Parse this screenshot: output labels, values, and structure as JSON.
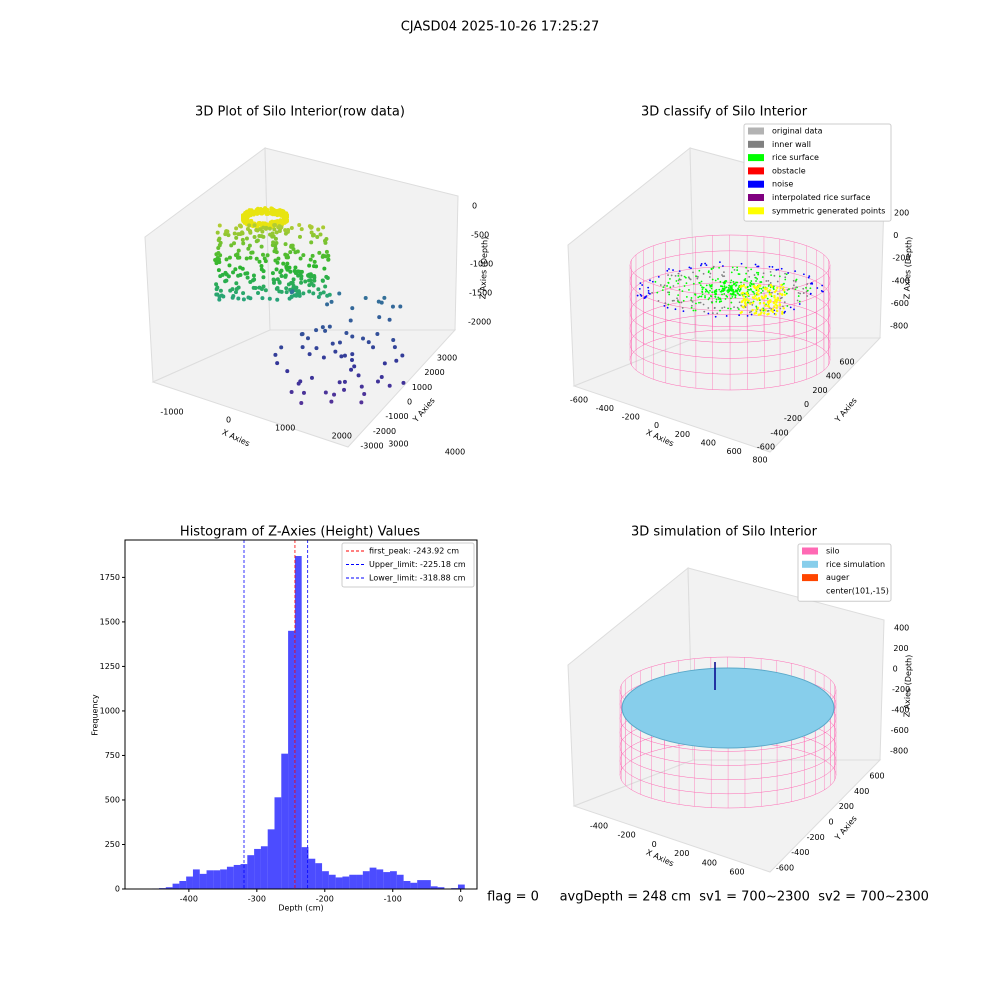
{
  "chart_data": [
    {
      "type": "scatter3d",
      "title": "3D Plot of Silo Interior(row data)",
      "xlabel": "X Axies",
      "ylabel": "Y Axies",
      "zlabel": "Z Axies (Depth)",
      "xticks": [
        -1000,
        0,
        1000,
        2000,
        3000,
        4000
      ],
      "yticks": [
        -3000,
        -2000,
        -1000,
        0,
        1000,
        2000,
        3000
      ],
      "zticks": [
        0,
        -500,
        -1000,
        -1500,
        -2000
      ]
    },
    {
      "type": "scatter3d",
      "title": "3D classify of Silo Interior",
      "xlabel": "X Axies",
      "ylabel": "Y Axies",
      "zlabel": "Z Axies (Depth)",
      "xticks": [
        -600,
        -400,
        -200,
        0,
        200,
        400,
        600,
        800
      ],
      "yticks": [
        -600,
        -400,
        -200,
        0,
        200,
        400,
        600
      ],
      "zticks": [
        200,
        0,
        -200,
        -400,
        -600,
        -800
      ],
      "legend": [
        {
          "name": "original data",
          "color": "#b3b3b3"
        },
        {
          "name": "inner wall",
          "color": "#808080"
        },
        {
          "name": "rice surface",
          "color": "#00ff00"
        },
        {
          "name": "obstacle",
          "color": "#ff0000"
        },
        {
          "name": "noise",
          "color": "#0000ff"
        },
        {
          "name": "interpolated rice surface",
          "color": "#800080"
        },
        {
          "name": "symmetric generated points",
          "color": "#ffff00"
        }
      ]
    },
    {
      "type": "histogram",
      "title": "Histogram of Z-Axies (Height) Values",
      "xlabel": "Depth (cm)",
      "ylabel": "Frequency",
      "color": "#0000ff",
      "bins": [
        -454,
        -444,
        -434,
        -424,
        -414,
        -404,
        -394,
        -384,
        -374,
        -364,
        -354,
        -344,
        -334,
        -324,
        -314,
        -304,
        -294,
        -284,
        -274,
        -264,
        -254,
        -244,
        -234,
        -224,
        -214,
        -204,
        -194,
        -184,
        -174,
        -164,
        -154,
        -144,
        -134,
        -124,
        -114,
        -104,
        -94,
        -84,
        -74,
        -64,
        -54,
        -44,
        -34,
        -24,
        -14,
        -4,
        6
      ],
      "values": [
        3,
        5,
        10,
        30,
        45,
        70,
        110,
        85,
        105,
        105,
        110,
        125,
        135,
        140,
        190,
        225,
        240,
        335,
        515,
        760,
        1450,
        1870,
        235,
        170,
        145,
        100,
        80,
        65,
        70,
        80,
        80,
        100,
        120,
        110,
        95,
        100,
        80,
        45,
        35,
        50,
        50,
        15,
        10,
        0,
        5,
        25
      ],
      "xlim": [
        -494,
        24
      ],
      "ylim": [
        0,
        1960
      ],
      "xticks": [
        -400,
        -300,
        -200,
        -100,
        0
      ],
      "yticks": [
        0,
        250,
        500,
        750,
        1000,
        1250,
        1500,
        1750
      ],
      "vlines": [
        {
          "value": -243.92,
          "label": "first_peak: -243.92 cm",
          "color": "#ff0000"
        },
        {
          "value": -225.18,
          "label": "Upper_limit: -225.18 cm",
          "color": "#0000ff"
        },
        {
          "value": -318.88,
          "label": "Lower_limit: -318.88 cm",
          "color": "#0000ff"
        }
      ]
    },
    {
      "type": "surface3d",
      "title": "3D simulation of Silo Interior",
      "xlabel": "X Axies",
      "ylabel": "Y Axies",
      "zlabel": "Z Axies (Depth)",
      "xticks": [
        -400,
        -200,
        0,
        200,
        400,
        600
      ],
      "yticks": [
        -600,
        -400,
        -200,
        0,
        200,
        400,
        600
      ],
      "zticks": [
        400,
        200,
        0,
        -200,
        -400,
        -600,
        -800
      ],
      "legend": [
        {
          "name": "silo",
          "color": "#ff69b4"
        },
        {
          "name": "rice simulation",
          "color": "#87ceeb"
        },
        {
          "name": "auger",
          "color": "#ff4500"
        },
        {
          "name": "center(101,-15)"
        }
      ]
    }
  ],
  "suptitle": "CJASD04 2025-10-26 17:25:27",
  "footer": "flag = 0     avgDepth = 248 cm  sv1 = 700~2300  sv2 = 700~2300"
}
